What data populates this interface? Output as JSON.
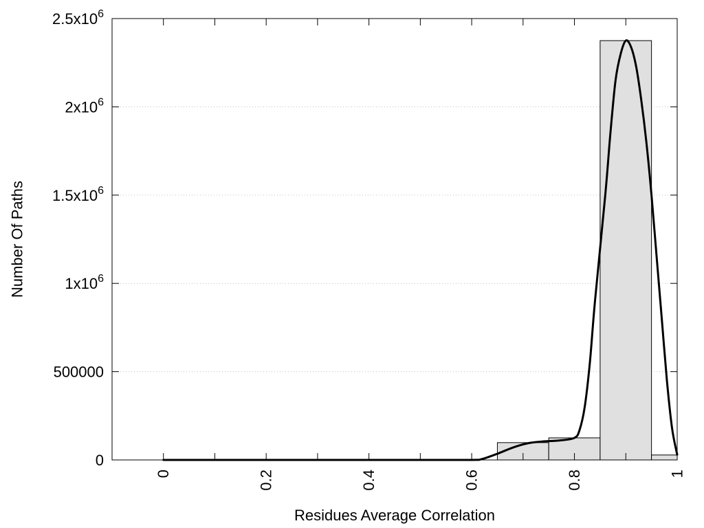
{
  "chart_data": {
    "type": "bar",
    "title": "",
    "xlabel": "Residues Average Correlation",
    "ylabel": "Number Of Paths",
    "xlim": [
      -0.1,
      1.0
    ],
    "ylim": [
      0,
      2500000
    ],
    "grid": true,
    "y_ticks": [
      {
        "value": 0,
        "mantissa": "0",
        "exponent": ""
      },
      {
        "value": 500000,
        "mantissa": "500000",
        "exponent": ""
      },
      {
        "value": 1000000,
        "mantissa": "1x10",
        "exponent": "6"
      },
      {
        "value": 1500000,
        "mantissa": "1.5x10",
        "exponent": "6"
      },
      {
        "value": 2000000,
        "mantissa": "2x10",
        "exponent": "6"
      },
      {
        "value": 2500000,
        "mantissa": "2.5x10",
        "exponent": "6"
      }
    ],
    "x_ticks": [
      {
        "value": 0,
        "label": "0"
      },
      {
        "value": 0.2,
        "label": "0.2"
      },
      {
        "value": 0.4,
        "label": "0.4"
      },
      {
        "value": 0.6,
        "label": "0.6"
      },
      {
        "value": 0.8,
        "label": "0.8"
      },
      {
        "value": 1.0,
        "label": "1"
      }
    ],
    "x_minor_ticks": [
      0.1,
      0.3,
      0.5,
      0.7,
      0.9
    ],
    "bars": [
      {
        "x0": 0.65,
        "x1": 0.75,
        "value": 98000
      },
      {
        "x0": 0.75,
        "x1": 0.85,
        "value": 125000
      },
      {
        "x0": 0.85,
        "x1": 0.95,
        "value": 2375000
      },
      {
        "x0": 0.95,
        "x1": 1.0,
        "value": 28000
      }
    ],
    "bar_fill": "#e0e0e0",
    "bar_stroke": "#000000",
    "curve_color": "#000000",
    "curve": [
      {
        "x": 0.0,
        "y": 0
      },
      {
        "x": 0.1,
        "y": 0
      },
      {
        "x": 0.2,
        "y": 0
      },
      {
        "x": 0.3,
        "y": 0
      },
      {
        "x": 0.4,
        "y": 0
      },
      {
        "x": 0.5,
        "y": 0
      },
      {
        "x": 0.6,
        "y": 0
      },
      {
        "x": 0.62,
        "y": 5000
      },
      {
        "x": 0.65,
        "y": 35000
      },
      {
        "x": 0.68,
        "y": 70000
      },
      {
        "x": 0.71,
        "y": 95000
      },
      {
        "x": 0.74,
        "y": 105000
      },
      {
        "x": 0.77,
        "y": 110000
      },
      {
        "x": 0.8,
        "y": 125000
      },
      {
        "x": 0.81,
        "y": 170000
      },
      {
        "x": 0.82,
        "y": 300000
      },
      {
        "x": 0.83,
        "y": 550000
      },
      {
        "x": 0.84,
        "y": 900000
      },
      {
        "x": 0.86,
        "y": 1500000
      },
      {
        "x": 0.87,
        "y": 1850000
      },
      {
        "x": 0.88,
        "y": 2150000
      },
      {
        "x": 0.89,
        "y": 2300000
      },
      {
        "x": 0.9,
        "y": 2375000
      },
      {
        "x": 0.91,
        "y": 2340000
      },
      {
        "x": 0.92,
        "y": 2230000
      },
      {
        "x": 0.93,
        "y": 2040000
      },
      {
        "x": 0.94,
        "y": 1800000
      },
      {
        "x": 0.95,
        "y": 1500000
      },
      {
        "x": 0.96,
        "y": 1150000
      },
      {
        "x": 0.97,
        "y": 800000
      },
      {
        "x": 0.98,
        "y": 450000
      },
      {
        "x": 0.99,
        "y": 180000
      },
      {
        "x": 1.0,
        "y": 30000
      }
    ]
  }
}
